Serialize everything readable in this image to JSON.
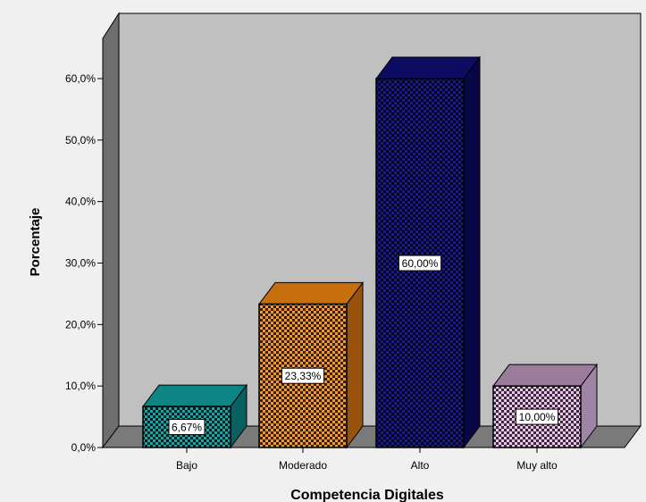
{
  "chart_data": {
    "type": "bar",
    "categories": [
      "Bajo",
      "Moderado",
      "Alto",
      "Muy alto"
    ],
    "values": [
      6.67,
      23.33,
      60.0,
      10.0
    ],
    "data_labels": [
      "6,67%",
      "23,33%",
      "60,00%",
      "10,00%"
    ],
    "xlabel": "Competencia Digitales",
    "ylabel": "Porcentaje",
    "ylim": [
      0,
      60
    ],
    "yticks": [
      0,
      10,
      20,
      30,
      40,
      50,
      60
    ],
    "ytick_labels": [
      "0,0%",
      "10,0%",
      "20,0%",
      "30,0%",
      "40,0%",
      "50,0%",
      "60,0%"
    ],
    "grid": false,
    "style": "3d-bar",
    "colors": {
      "page_background": "#f0f0f0",
      "plot_wall": "#c0c0c0",
      "side_wall": "#6e6e6e",
      "floor": "#7a7a7a"
    },
    "bar_colors": [
      {
        "front": "#10a8a8",
        "top": "#0e8585",
        "side": "#086060",
        "pattern_dark": "#062020"
      },
      {
        "front": "#f59a2a",
        "top": "#c76e0f",
        "side": "#98520c",
        "pattern_dark": "#3a1e05"
      },
      {
        "front": "#1a1a8a",
        "top": "#0c0c60",
        "side": "#070745",
        "pattern_dark": "#000020"
      },
      {
        "front": "#eac4ea",
        "top": "#9c7c9c",
        "side": "#a084a6",
        "pattern_dark": "#3a2a3a"
      }
    ]
  }
}
